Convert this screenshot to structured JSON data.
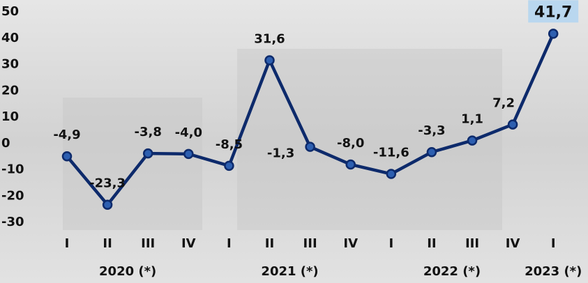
{
  "chart_data": {
    "type": "line",
    "categories": [
      "I",
      "II",
      "III",
      "IV",
      "I",
      "II",
      "III",
      "IV",
      "I",
      "II",
      "III",
      "IV",
      "I"
    ],
    "groups": [
      "2020 (*)",
      "2021 (*)",
      "2022 (*)",
      "2023 (*)"
    ],
    "series": [
      {
        "color": "#0d2a6b",
        "values": [
          -4.9,
          -23.3,
          -3.8,
          -4.0,
          -8.5,
          31.6,
          -1.3,
          -8.0,
          -11.6,
          -3.3,
          1.1,
          7.2,
          41.7
        ],
        "value_labels": [
          "-4,9",
          "-23,3",
          "-3,8",
          "-4,0",
          "-8,5",
          "31,6",
          "-1,3",
          "-8,0",
          "-11,6",
          "-3,3",
          "1,1",
          "7,2",
          "41,7"
        ]
      }
    ],
    "ylim": [
      -30,
      50
    ],
    "yticks": [
      50,
      40,
      30,
      20,
      10,
      0,
      -10,
      -20,
      -30
    ]
  }
}
